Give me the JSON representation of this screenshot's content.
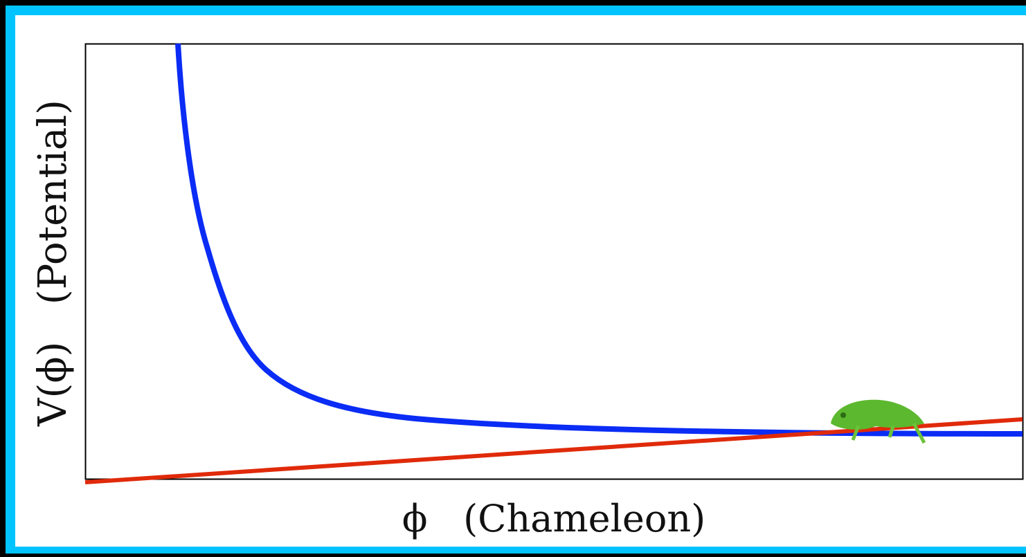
{
  "y_axis_label": "V(ϕ)   (Potential)",
  "x_axis_label": "ϕ   (Chameleon)"
}
